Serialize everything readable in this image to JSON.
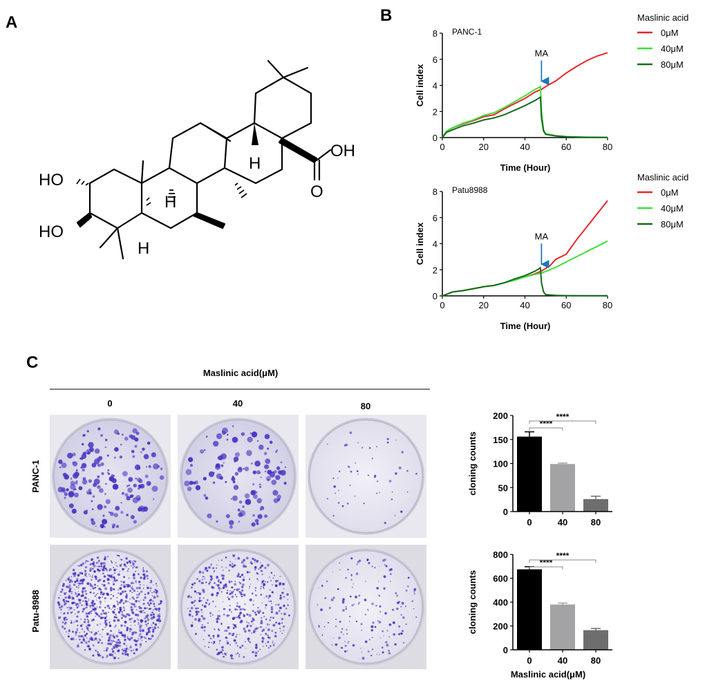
{
  "panels": {
    "a": "A",
    "b": "B",
    "c": "C"
  },
  "structure": {
    "labels": [
      "HO",
      "HO",
      "H",
      "H",
      "H",
      "OH",
      "O"
    ]
  },
  "legend": {
    "title": "Maslinic acid",
    "entries": [
      {
        "label": "0μM",
        "color": "#e8262a"
      },
      {
        "label": "40μM",
        "color": "#3be03b"
      },
      {
        "label": "80μM",
        "color": "#156b1c"
      }
    ]
  },
  "colony": {
    "header": "Maslinic acid(μM)",
    "doses": [
      "0",
      "40",
      "80"
    ],
    "rows": [
      "PANC-1",
      "Patu-8988"
    ]
  },
  "chart_data": [
    {
      "type": "line",
      "title": "PANC-1",
      "xlabel": "Time (Hour)",
      "ylabel": "Cell index",
      "xlim": [
        0,
        80
      ],
      "ylim": [
        0,
        8
      ],
      "xticks": [
        "0",
        "20",
        "40",
        "60",
        "80"
      ],
      "yticks": [
        "0",
        "2",
        "4",
        "6",
        "8"
      ],
      "annotation": {
        "text": "MA",
        "x": 48,
        "y": 3.9
      },
      "series": [
        {
          "name": "0μM",
          "color": "#e8262a",
          "x": [
            0,
            2,
            5,
            10,
            15,
            20,
            25,
            30,
            35,
            40,
            45,
            48,
            50,
            55,
            60,
            65,
            70,
            75,
            80
          ],
          "y": [
            0,
            0.5,
            0.75,
            1.05,
            1.3,
            1.6,
            1.75,
            2.2,
            2.6,
            3.0,
            3.5,
            3.7,
            3.9,
            4.35,
            4.95,
            5.45,
            5.9,
            6.25,
            6.5
          ]
        },
        {
          "name": "40μM",
          "color": "#3be03b",
          "x": [
            0,
            2,
            5,
            10,
            15,
            20,
            25,
            30,
            35,
            40,
            45,
            47.5,
            48,
            49,
            50,
            55,
            60,
            65,
            70,
            80
          ],
          "y": [
            0,
            0.5,
            0.75,
            1.1,
            1.35,
            1.7,
            1.9,
            2.3,
            2.75,
            3.2,
            3.7,
            3.9,
            2.0,
            0.6,
            0.3,
            0.15,
            0.08,
            0.05,
            0.03,
            0.02
          ]
        },
        {
          "name": "80μM",
          "color": "#156b1c",
          "x": [
            0,
            2,
            5,
            10,
            15,
            20,
            25,
            30,
            35,
            40,
            45,
            47.5,
            48,
            49,
            50,
            55,
            60,
            65,
            70,
            80
          ],
          "y": [
            0,
            0.4,
            0.6,
            0.9,
            1.1,
            1.35,
            1.5,
            1.75,
            2.1,
            2.45,
            2.85,
            3.1,
            1.5,
            0.5,
            0.25,
            0.12,
            0.06,
            0.04,
            0.02,
            0.01
          ]
        }
      ]
    },
    {
      "type": "line",
      "title": "Patu8988",
      "xlabel": "Time (Hour)",
      "ylabel": "Cell index",
      "xlim": [
        0,
        80
      ],
      "ylim": [
        0,
        8
      ],
      "xticks": [
        "0",
        "20",
        "40",
        "60",
        "80"
      ],
      "yticks": [
        "0",
        "2",
        "4",
        "6",
        "8"
      ],
      "annotation": {
        "text": "MA",
        "x": 48,
        "y": 2.0
      },
      "series": [
        {
          "name": "0μM",
          "color": "#e8262a",
          "x": [
            0,
            5,
            10,
            15,
            20,
            25,
            30,
            35,
            40,
            45,
            48,
            52,
            55,
            60,
            65,
            70,
            75,
            80
          ],
          "y": [
            0,
            0.3,
            0.4,
            0.55,
            0.7,
            0.8,
            1.0,
            1.25,
            1.45,
            1.7,
            1.9,
            2.3,
            2.8,
            3.2,
            4.3,
            5.3,
            6.3,
            7.3
          ]
        },
        {
          "name": "40μM",
          "color": "#3be03b",
          "x": [
            0,
            5,
            10,
            15,
            20,
            25,
            30,
            35,
            40,
            45,
            48,
            52,
            55,
            60,
            65,
            70,
            75,
            80
          ],
          "y": [
            0,
            0.3,
            0.4,
            0.55,
            0.7,
            0.8,
            1.0,
            1.2,
            1.45,
            1.65,
            1.75,
            2.0,
            2.2,
            2.6,
            3.0,
            3.4,
            3.8,
            4.2
          ]
        },
        {
          "name": "80μM",
          "color": "#156b1c",
          "x": [
            0,
            5,
            10,
            15,
            20,
            25,
            30,
            35,
            40,
            45,
            47.5,
            48,
            49,
            50,
            55,
            60,
            70,
            80
          ],
          "y": [
            0,
            0.3,
            0.4,
            0.55,
            0.7,
            0.8,
            1.0,
            1.3,
            1.55,
            1.9,
            2.15,
            1.0,
            0.3,
            0.1,
            0.04,
            0.02,
            0.01,
            0.01
          ]
        }
      ]
    },
    {
      "type": "bar",
      "title": "",
      "xlabel": "",
      "ylabel": "cloning counts",
      "categories": [
        "0",
        "40",
        "80"
      ],
      "values": [
        156,
        99,
        26
      ],
      "errors": [
        10,
        2,
        6
      ],
      "colors": [
        "#000000",
        "#a3a3a6",
        "#6e6e6e"
      ],
      "ylim": [
        0,
        200
      ],
      "yticks": [
        "0",
        "50",
        "100",
        "150",
        "200"
      ],
      "significance": [
        {
          "from": "0",
          "to": "40",
          "label": "****"
        },
        {
          "from": "0",
          "to": "80",
          "label": "****"
        }
      ]
    },
    {
      "type": "bar",
      "title": "",
      "xlabel": "Maslinic acid(μM)",
      "ylabel": "cloning counts",
      "categories": [
        "0",
        "40",
        "80"
      ],
      "values": [
        675,
        380,
        165
      ],
      "errors": [
        22,
        12,
        14
      ],
      "colors": [
        "#000000",
        "#a3a3a6",
        "#6e6e6e"
      ],
      "ylim": [
        0,
        800
      ],
      "yticks": [
        "0",
        "200",
        "400",
        "600",
        "800"
      ],
      "significance": [
        {
          "from": "0",
          "to": "40",
          "label": "****"
        },
        {
          "from": "0",
          "to": "80",
          "label": "****"
        }
      ]
    }
  ]
}
